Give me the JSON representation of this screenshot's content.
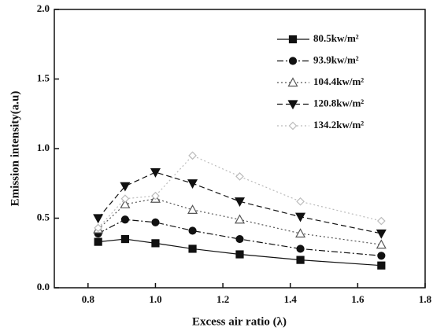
{
  "chart_data": {
    "type": "line",
    "xlabel": "Excess air ratio (λ)",
    "ylabel": "Emission intensity(a.u)",
    "x": [
      0.83,
      0.91,
      1.0,
      1.11,
      1.25,
      1.43,
      1.67
    ],
    "xlim": [
      0.7,
      1.8
    ],
    "xticks": [
      0.8,
      {
        "value": 1,
        "label": "1.0"
      },
      1.2,
      1.4,
      1.6,
      1.8
    ],
    "ylim": [
      0,
      2
    ],
    "yticks": [
      {
        "value": 0,
        "label": "0.0"
      },
      0.5,
      {
        "value": 1,
        "label": "1.0"
      },
      1.5,
      {
        "value": 2,
        "label": "2.0"
      }
    ],
    "legend": "upper right",
    "series": [
      {
        "name": "80.5kw/m²",
        "color": "#111111",
        "marker": "square",
        "dash": "solid",
        "values": [
          0.33,
          0.35,
          0.32,
          0.28,
          0.24,
          0.2,
          0.16
        ]
      },
      {
        "name": "93.9kw/m²",
        "color": "#111111",
        "marker": "circle",
        "dash": "dashdot",
        "values": [
          0.39,
          0.49,
          0.47,
          0.41,
          0.35,
          0.28,
          0.23
        ]
      },
      {
        "name": "104.4kw/m²",
        "color": "#555555",
        "marker": "triangle-open",
        "dash": "dotted",
        "values": [
          0.42,
          0.6,
          0.64,
          0.56,
          0.49,
          0.39,
          0.31
        ]
      },
      {
        "name": "120.8kw/m²",
        "color": "#111111",
        "marker": "triangle-down",
        "dash": "dashed",
        "values": [
          0.5,
          0.73,
          0.83,
          0.75,
          0.62,
          0.51,
          0.39
        ]
      },
      {
        "name": "134.2kw/m²",
        "color": "#bbbbbb",
        "marker": "diamond-open",
        "dash": "dotted",
        "values": [
          0.43,
          0.64,
          0.66,
          0.95,
          0.8,
          0.62,
          0.48
        ]
      }
    ]
  }
}
